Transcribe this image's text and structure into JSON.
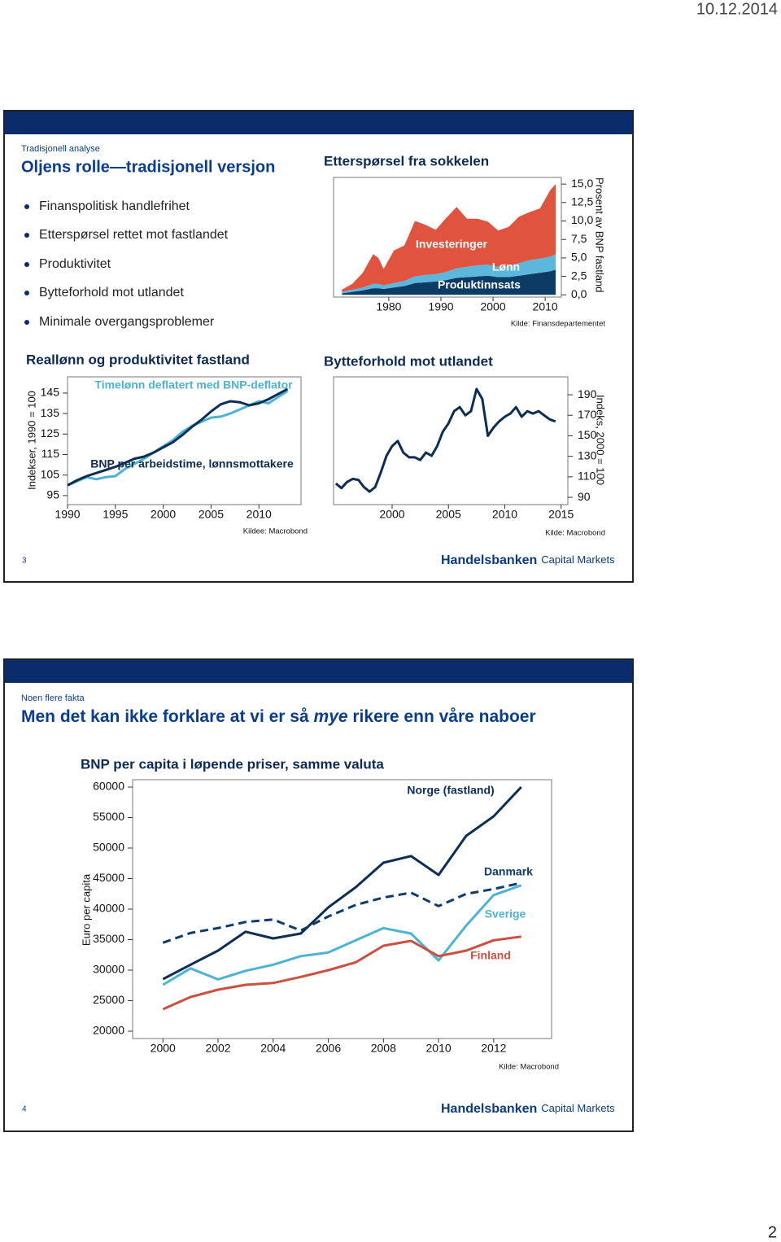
{
  "header": {
    "date": "10.12.2014"
  },
  "slides": [
    {
      "number": "3",
      "kicker": "Tradisjonell analyse",
      "title": "Oljens rolle—tradisjonell versjon",
      "bullets": [
        "Finanspolitisk handlefrihet",
        "Etterspørsel rettet mot fastlandet",
        "Produktivitet",
        "Bytteforhold mot utlandet",
        "Minimale overgangsproblemer"
      ],
      "logo": {
        "brand": "Handelsbanken",
        "sub": "Capital Markets"
      }
    },
    {
      "number": "4",
      "kicker": "Noen flere fakta",
      "title": {
        "before": "Men det kan ikke forklare at vi er så ",
        "emphasis": "mye",
        "after": " rikere enn våre naboer"
      },
      "logo": {
        "brand": "Handelsbanken",
        "sub": "Capital Markets"
      }
    }
  ],
  "page_number": "2",
  "chart_data": [
    {
      "type": "stacked_area",
      "title": "Etterspørsel fra sokkelen",
      "y_axis_label": "Prosent av BNP fastland",
      "source": "Kilde: Finansdepartementet",
      "y_axis_side": "right",
      "x": [
        1971,
        1973,
        1975,
        1977,
        1978,
        1979,
        1981,
        1983,
        1985,
        1987,
        1989,
        1991,
        1993,
        1995,
        1997,
        1999,
        2001,
        2003,
        2005,
        2007,
        2009,
        2011,
        2012
      ],
      "xlim": [
        1969.4,
        2013.1
      ],
      "xticks": [
        1980,
        1990,
        2000,
        2010
      ],
      "ylim": [
        -0.3,
        15.9
      ],
      "yticks": [
        {
          "value": 0,
          "label": "0,0"
        },
        {
          "value": 2.5,
          "label": "2,5"
        },
        {
          "value": 5,
          "label": "5,0"
        },
        {
          "value": 7.5,
          "label": "7,5"
        },
        {
          "value": 10,
          "label": "10,0"
        },
        {
          "value": 12.5,
          "label": "12,5"
        },
        {
          "value": 15,
          "label": "15,0"
        }
      ],
      "series": [
        {
          "name": "Produktinnsats",
          "color": "#0c3b66",
          "values": [
            0.2,
            0.4,
            0.6,
            0.9,
            0.9,
            0.8,
            1.0,
            1.2,
            1.6,
            1.7,
            1.8,
            2.0,
            2.3,
            2.4,
            2.5,
            2.6,
            2.4,
            2.4,
            2.6,
            2.8,
            3.0,
            3.2,
            3.4
          ]
        },
        {
          "name": "Lønn",
          "color": "#5bb8dc",
          "values": [
            0.2,
            0.3,
            0.4,
            0.6,
            0.6,
            0.5,
            0.6,
            0.7,
            0.9,
            1.0,
            1.0,
            1.1,
            1.3,
            1.4,
            1.5,
            1.5,
            1.4,
            1.5,
            1.7,
            1.9,
            1.9,
            2.0,
            2.1
          ]
        },
        {
          "name": "Investeringer",
          "color": "#e0533f",
          "values": [
            0.3,
            0.8,
            2.0,
            4.0,
            3.5,
            2.2,
            4.4,
            4.8,
            7.5,
            6.8,
            6.0,
            7.3,
            8.3,
            6.5,
            6.3,
            5.8,
            4.9,
            5.3,
            6.3,
            6.5,
            6.8,
            9.0,
            9.5
          ]
        }
      ]
    },
    {
      "type": "line",
      "title": "Reallønn og produktivitet fastland",
      "y_axis_label": "Indekser, 1990 = 100",
      "source": "Kildee: Macrobond",
      "y_axis_side": "left",
      "x": [
        1990,
        1991,
        1992,
        1993,
        1994,
        1995,
        1996,
        1997,
        1998,
        1999,
        2000,
        2001,
        2002,
        2003,
        2004,
        2005,
        2006,
        2007,
        2008,
        2009,
        2010,
        2011,
        2012,
        2013
      ],
      "xlim": [
        1990,
        2014.4
      ],
      "xticks": [
        1990,
        1995,
        2000,
        2005,
        2010
      ],
      "ylim": [
        90.6,
        152.9
      ],
      "yticks": [
        95,
        105,
        115,
        125,
        135,
        145
      ],
      "series": [
        {
          "name": "Timelønn deflatert med BNP-deflator",
          "color": "#4cb3d4",
          "values": [
            100,
            102,
            104,
            103,
            104,
            104.5,
            108,
            110.5,
            113,
            116,
            119,
            122,
            126,
            129,
            131,
            133,
            133.5,
            135,
            137,
            139,
            141,
            140,
            143,
            146
          ]
        },
        {
          "name": "BNP per arbeidstime, lønnsmottakere",
          "color": "#0c2d56",
          "values": [
            100,
            102.5,
            104.5,
            106,
            107.5,
            109,
            111,
            113,
            114,
            116,
            118.5,
            121,
            124.5,
            128.5,
            132,
            136,
            139.5,
            141,
            140.5,
            139,
            140,
            142,
            144.5,
            147
          ]
        }
      ]
    },
    {
      "type": "line",
      "title": "Bytteforhold mot utlandet",
      "y_axis_label": "Indeks, 2000 = 100",
      "source": "Kilde: Macrobond",
      "y_axis_side": "right",
      "x": [
        1995,
        1995.5,
        1996,
        1996.5,
        1997,
        1997.5,
        1998,
        1998.5,
        1999,
        1999.5,
        2000,
        2000.5,
        2001,
        2001.5,
        2002,
        2002.5,
        2003,
        2003.5,
        2004,
        2004.5,
        2005,
        2005.5,
        2006,
        2006.5,
        2007,
        2007.5,
        2008,
        2008.5,
        2009,
        2009.5,
        2010,
        2010.5,
        2011,
        2011.5,
        2012,
        2012.5,
        2013,
        2013.5,
        2014,
        2014.5
      ],
      "xlim": [
        1994.8,
        2015.6
      ],
      "xticks": [
        2000,
        2005,
        2010,
        2015
      ],
      "ylim": [
        82.9,
        207.5
      ],
      "yticks": [
        90,
        110,
        130,
        150,
        170,
        190
      ],
      "series": [
        {
          "color": "#0c2d56",
          "values": [
            103.5,
            99,
            105,
            108,
            107,
            100,
            95.5,
            100,
            114.6,
            130.5,
            140,
            145,
            133.6,
            129,
            129,
            126.5,
            133.6,
            130.5,
            140,
            154,
            162,
            174,
            178,
            170,
            174,
            195.6,
            186,
            150,
            158,
            164,
            168.6,
            171.7,
            178,
            168.6,
            174,
            171.7,
            174,
            170,
            166,
            164
          ]
        }
      ]
    },
    {
      "type": "line",
      "title": "BNP per capita i løpende priser, samme valuta",
      "y_axis_label": "Euro per capita",
      "source": "Kilde: Macrobond",
      "y_axis_side": "left",
      "x": [
        2000,
        2001,
        2002,
        2003,
        2004,
        2005,
        2006,
        2007,
        2008,
        2009,
        2010,
        2011,
        2012,
        2013
      ],
      "xlim": [
        1998.9,
        2014.1
      ],
      "xticks": [
        2000,
        2002,
        2004,
        2006,
        2008,
        2010,
        2012
      ],
      "ylim": [
        18800,
        61200
      ],
      "yticks": [
        20000,
        25000,
        30000,
        35000,
        40000,
        45000,
        50000,
        55000,
        60000
      ],
      "series": [
        {
          "name": "Norge (fastland)",
          "color": "#0c2d56",
          "values": [
            28533,
            30900,
            33200,
            36300,
            35200,
            36000,
            40300,
            43600,
            47600,
            48700,
            45600,
            52000,
            55200,
            60000
          ]
        },
        {
          "name": "Danmark",
          "color": "#0c3b70",
          "line_style": "dashed",
          "values": [
            34500,
            36100,
            36900,
            37900,
            38300,
            36500,
            38800,
            40700,
            41900,
            42700,
            40500,
            42500,
            43300,
            44300
          ]
        },
        {
          "name": "Sverige",
          "color": "#4cb3d4",
          "values": [
            27600,
            30300,
            28500,
            29900,
            30900,
            32300,
            32900,
            34900,
            36900,
            36000,
            31600,
            37300,
            42300,
            43900
          ]
        },
        {
          "name": "Finland",
          "color": "#cc4f3f",
          "values": [
            23600,
            25600,
            26800,
            27600,
            27900,
            28900,
            30000,
            31300,
            34000,
            34800,
            32300,
            33200,
            34900,
            35500
          ]
        }
      ]
    }
  ]
}
